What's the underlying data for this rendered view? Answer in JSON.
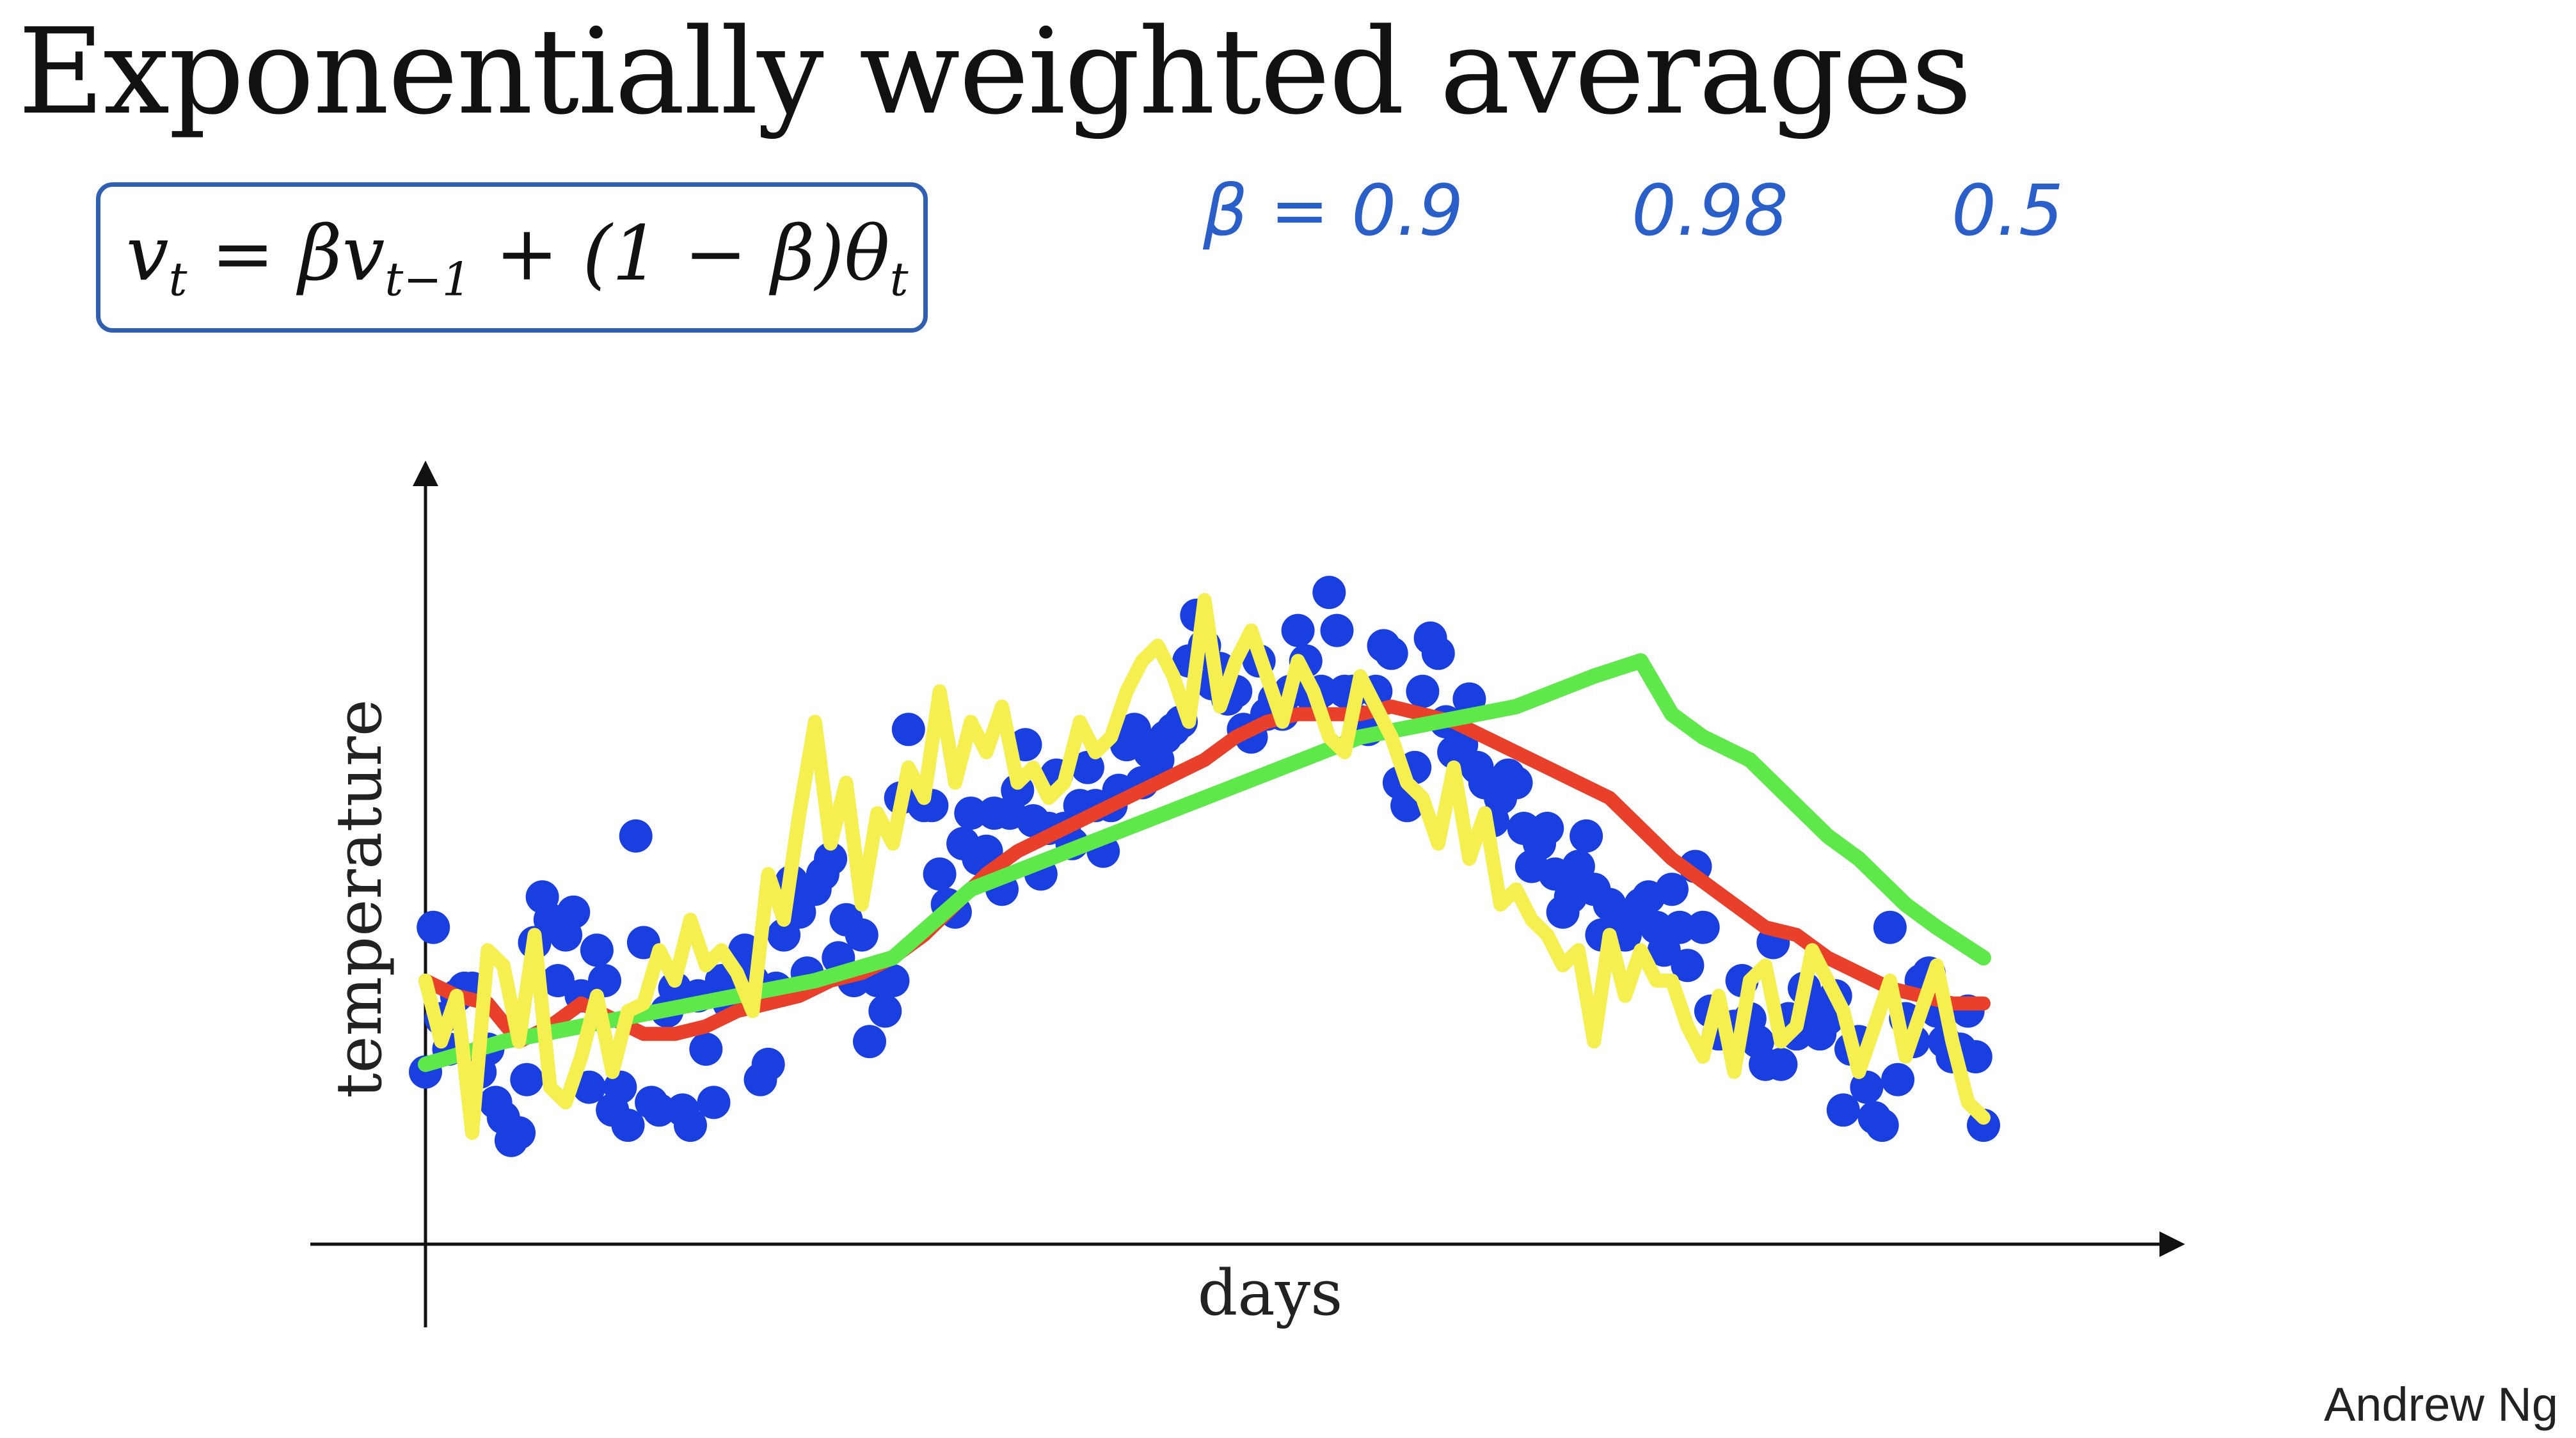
{
  "slide": {
    "title": "Exponentially weighted averages",
    "formula": {
      "lhs": "v",
      "lhs_sub": "t",
      "eq": " = βv",
      "mid_sub": "t−1",
      "rhs": " + (1 − β)θ",
      "rhs_sub": "t"
    },
    "beta_notes": [
      "β = 0.9",
      "0.98",
      "0.5"
    ],
    "signature": "Andrew Ng",
    "colors": {
      "formula_box": "#2f5fb3",
      "notes": "#2a5fc9"
    }
  },
  "chart_data": {
    "type": "scatter",
    "title": "",
    "xlabel": "days",
    "ylabel": "temperature",
    "xlim": [
      0,
      100
    ],
    "ylim": [
      0,
      100
    ],
    "grid": false,
    "legend": "none",
    "points_color": "#1a3fe0",
    "series": [
      {
        "kind": "points",
        "color": "#1a3fe0",
        "x": [
          0,
          0.5,
          1,
          1.5,
          2,
          2.5,
          3,
          3.5,
          4,
          4.5,
          5,
          5.5,
          6,
          6.5,
          7,
          7.5,
          8,
          8.5,
          9,
          9.5,
          10,
          10.5,
          11,
          11.5,
          12,
          12.5,
          13,
          13.5,
          14,
          14.5,
          15,
          15.5,
          16,
          16.5,
          17,
          17.5,
          18,
          18.5,
          19,
          19.5,
          20,
          20.5,
          21,
          21.5,
          22,
          22.5,
          23,
          23.5,
          24,
          24.5,
          25,
          25.5,
          26,
          26.5,
          27,
          27.5,
          28,
          28.5,
          29,
          29.5,
          30,
          30.5,
          31,
          31.5,
          32,
          32.5,
          33,
          33.5,
          34,
          34.5,
          35,
          35.5,
          36,
          36.5,
          37,
          37.5,
          38,
          38.5,
          39,
          39.5,
          40,
          40.5,
          41,
          41.5,
          42,
          42.5,
          43,
          43.5,
          44,
          44.5,
          45,
          45.5,
          46,
          46.5,
          47,
          47.5,
          48,
          48.5,
          49,
          49.5,
          50,
          50.5,
          51,
          51.5,
          52,
          52.5,
          53,
          53.5,
          54,
          54.5,
          55,
          55.5,
          56,
          56.5,
          57,
          57.5,
          58,
          58.5,
          59,
          59.5,
          60,
          60.5,
          61,
          61.5,
          62,
          62.5,
          63,
          63.5,
          64,
          64.5,
          65,
          65.5,
          66,
          66.5,
          67,
          67.5,
          68,
          68.5,
          69,
          69.5,
          70,
          70.5,
          71,
          71.5,
          72,
          72.5,
          73,
          73.5,
          74,
          74.5,
          75,
          75.5,
          76,
          76.5,
          77,
          77.5,
          78,
          78.5,
          79,
          79.5,
          80,
          80.5,
          81,
          81.5,
          82,
          82.5,
          83,
          83.5,
          84,
          84.5,
          85,
          85.5,
          86,
          86.5,
          87,
          87.5,
          88,
          88.5,
          89,
          89.5,
          90,
          90.5,
          91,
          91.5,
          92,
          92.5,
          93,
          93.5,
          94,
          94.5,
          95,
          95.5,
          96,
          96.5,
          97,
          97.5,
          98,
          98.5,
          99,
          99.5,
          100
        ],
        "y": [
          18,
          37,
          25,
          21,
          28,
          29,
          29,
          18,
          21,
          14,
          12,
          9,
          10,
          17,
          35,
          41,
          38,
          30,
          36,
          39,
          28,
          16,
          34,
          30,
          13,
          16,
          11,
          49,
          35,
          14,
          13,
          26,
          29,
          13,
          11,
          28,
          21,
          14,
          30,
          27,
          30,
          34,
          30,
          17,
          19,
          29,
          36,
          43,
          39,
          31,
          42,
          44,
          46,
          33,
          38,
          30,
          36,
          22,
          30,
          26,
          30,
          54,
          63,
          54,
          53,
          53,
          44,
          40,
          39,
          48,
          52,
          46,
          47,
          52,
          42,
          52,
          55,
          61,
          51,
          44,
          50,
          57,
          50,
          48,
          53,
          58,
          53,
          47,
          53,
          55,
          61,
          63,
          56,
          60,
          59,
          62,
          63,
          64,
          72,
          78,
          74,
          69,
          71,
          67,
          68,
          63,
          62,
          72,
          65,
          67,
          65,
          68,
          76,
          72,
          67,
          68,
          81,
          76,
          68,
          68,
          64,
          63,
          68,
          74,
          73,
          56,
          53,
          58,
          68,
          75,
          73,
          64,
          60,
          61,
          67,
          58,
          56,
          51,
          54,
          57,
          56,
          50,
          45,
          48,
          50,
          44,
          39,
          41,
          45,
          49,
          42,
          36,
          40,
          38,
          36,
          38,
          40,
          41,
          37,
          34,
          42,
          37,
          32,
          45,
          37,
          26,
          23,
          23,
          24,
          30,
          25,
          22,
          19,
          35,
          19,
          25,
          23,
          29,
          26,
          23,
          25,
          28,
          13,
          21,
          22,
          16,
          12,
          11,
          37,
          17,
          25,
          22,
          30,
          31,
          26,
          22,
          20,
          21,
          26,
          20,
          11
        ]
      },
      {
        "kind": "line",
        "name": "β = 0.9",
        "color": "#e8402a",
        "x": [
          0,
          2,
          4,
          6,
          8,
          10,
          12,
          14,
          16,
          18,
          20,
          22,
          24,
          26,
          28,
          30,
          32,
          34,
          36,
          38,
          40,
          42,
          44,
          46,
          48,
          50,
          52,
          54,
          56,
          58,
          60,
          62,
          64,
          66,
          68,
          70,
          72,
          74,
          76,
          78,
          80,
          82,
          84,
          86,
          88,
          90,
          92,
          94,
          96,
          98,
          100
        ],
        "y": [
          30,
          28,
          27,
          22,
          24,
          27,
          25,
          23,
          23,
          24,
          26,
          27,
          28,
          30,
          31,
          33,
          36,
          40,
          44,
          47,
          49,
          51,
          53,
          55,
          57,
          59,
          62,
          64,
          65,
          65,
          65,
          66,
          65,
          64,
          62,
          60,
          58,
          56,
          54,
          50,
          46,
          43,
          40,
          37,
          36,
          33,
          31,
          29,
          28,
          27,
          27
        ]
      },
      {
        "kind": "line",
        "name": "β = 0.98",
        "color": "#5ee84a",
        "x": [
          0,
          5,
          10,
          15,
          20,
          25,
          30,
          35,
          40,
          45,
          50,
          55,
          60,
          65,
          70,
          75,
          78,
          80,
          82,
          85,
          88,
          90,
          92,
          95,
          97,
          100
        ],
        "y": [
          19,
          22,
          24,
          26,
          28,
          30,
          33,
          42,
          46,
          50,
          54,
          58,
          62,
          64,
          66,
          70,
          72,
          65,
          62,
          59,
          53,
          49,
          46,
          40,
          37,
          33
        ]
      },
      {
        "kind": "line",
        "name": "β = 0.5",
        "color": "#f5f050",
        "x": [
          0,
          1,
          2,
          3,
          4,
          5,
          6,
          7,
          8,
          9,
          10,
          11,
          12,
          13,
          14,
          15,
          16,
          17,
          18,
          19,
          20,
          21,
          22,
          23,
          24,
          25,
          26,
          27,
          28,
          29,
          30,
          31,
          32,
          33,
          34,
          35,
          36,
          37,
          38,
          39,
          40,
          41,
          42,
          43,
          44,
          45,
          46,
          47,
          48,
          49,
          50,
          51,
          52,
          53,
          54,
          55,
          56,
          57,
          58,
          59,
          60,
          61,
          62,
          63,
          64,
          65,
          66,
          67,
          68,
          69,
          70,
          71,
          72,
          73,
          74,
          75,
          76,
          77,
          78,
          79,
          80,
          81,
          82,
          83,
          84,
          85,
          86,
          87,
          88,
          89,
          90,
          91,
          92,
          93,
          94,
          95,
          96,
          97,
          98,
          99,
          100
        ],
        "y": [
          30,
          22,
          28,
          10,
          34,
          32,
          22,
          36,
          16,
          14,
          20,
          28,
          18,
          26,
          27,
          34,
          30,
          38,
          32,
          34,
          31,
          26,
          44,
          38,
          52,
          64,
          48,
          56,
          40,
          52,
          48,
          58,
          54,
          68,
          56,
          64,
          60,
          66,
          56,
          58,
          54,
          56,
          64,
          60,
          62,
          68,
          72,
          74,
          70,
          64,
          80,
          66,
          72,
          76,
          70,
          64,
          72,
          68,
          62,
          60,
          70,
          66,
          62,
          56,
          54,
          48,
          58,
          46,
          52,
          40,
          42,
          38,
          36,
          32,
          34,
          22,
          36,
          28,
          34,
          30,
          30,
          24,
          20,
          28,
          18,
          30,
          32,
          22,
          24,
          34,
          30,
          26,
          18,
          24,
          30,
          20,
          26,
          32,
          22,
          14,
          12
        ]
      }
    ]
  }
}
